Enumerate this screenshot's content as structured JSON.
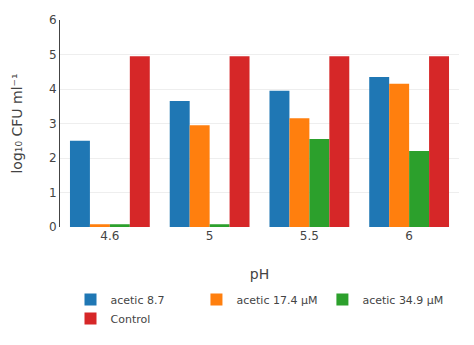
{
  "chart_data": {
    "type": "bar",
    "categories": [
      "4.6",
      "5",
      "5.5",
      "6"
    ],
    "series": [
      {
        "name": "acetic 8.7",
        "values": [
          2.5,
          3.65,
          3.95,
          4.35
        ]
      },
      {
        "name": "acetic 17.4 μM",
        "values": [
          0.08,
          2.95,
          3.15,
          4.15
        ]
      },
      {
        "name": "acetic 34.9 μM",
        "values": [
          0.08,
          0.08,
          2.55,
          2.2
        ]
      },
      {
        "name": "Control",
        "values": [
          4.95,
          4.95,
          4.95,
          4.95
        ]
      }
    ],
    "xlabel": "pH",
    "ylabel": "log₁₀ CFU ml⁻¹",
    "ylim": [
      0,
      6
    ],
    "yticks": [
      0,
      1,
      2,
      3,
      4,
      5,
      6
    ],
    "grid": true,
    "legend": "bottom"
  }
}
